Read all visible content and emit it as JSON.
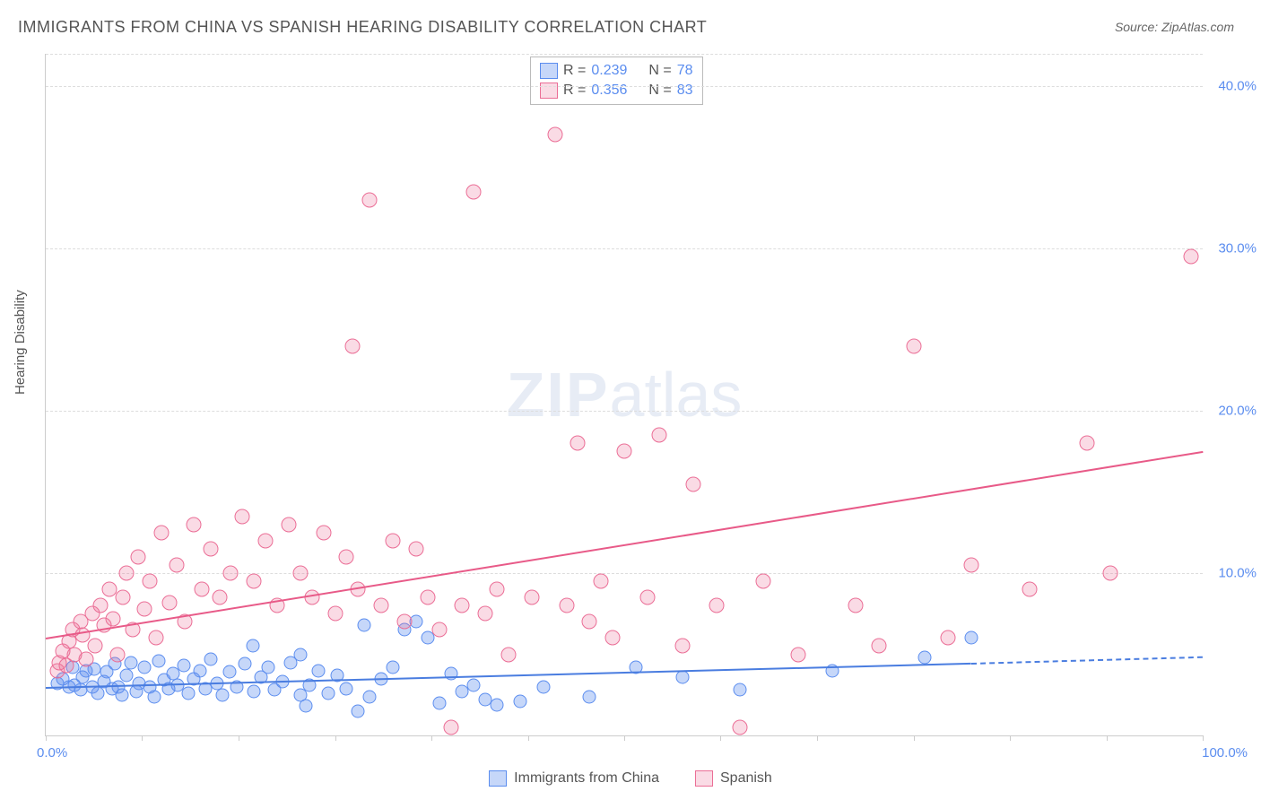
{
  "title": "IMMIGRANTS FROM CHINA VS SPANISH HEARING DISABILITY CORRELATION CHART",
  "source_label": "Source: ",
  "source_value": "ZipAtlas.com",
  "ylabel": "Hearing Disability",
  "watermark": {
    "bold": "ZIP",
    "light": "atlas"
  },
  "chart": {
    "type": "scatter",
    "background_color": "#ffffff",
    "grid_color": "#dddddd",
    "axis_color": "#cccccc",
    "xlim": [
      0,
      100
    ],
    "ylim": [
      0,
      42
    ],
    "x_min_label": "0.0%",
    "x_max_label": "100.0%",
    "xtick_positions": [
      0,
      8.3,
      16.7,
      25,
      33.3,
      41.7,
      50,
      58.3,
      66.7,
      75,
      83.3,
      91.7,
      100
    ],
    "y_gridlines": [
      10,
      20,
      30,
      40
    ],
    "y_gridline_labels": [
      "10.0%",
      "20.0%",
      "30.0%",
      "40.0%"
    ],
    "marker_radius_blue": 6.5,
    "marker_radius_pink": 7.5,
    "series": [
      {
        "name": "Immigrants from China",
        "color_fill": "rgba(91,141,239,0.35)",
        "color_stroke": "#5b8def",
        "R_label": "R = ",
        "R": "0.239",
        "N_label": "N = ",
        "N": "78",
        "trend": {
          "x0": 0,
          "y0": 3.0,
          "x1": 80,
          "y1": 4.5,
          "dash_x1": 100,
          "dash_y1": 4.9,
          "color": "#4a7de0",
          "width": 2
        },
        "points": [
          [
            1,
            3.2
          ],
          [
            1.5,
            3.5
          ],
          [
            2,
            3.0
          ],
          [
            2.3,
            4.2
          ],
          [
            2.5,
            3.1
          ],
          [
            3,
            2.8
          ],
          [
            3.2,
            3.6
          ],
          [
            3.5,
            4.0
          ],
          [
            4,
            3.0
          ],
          [
            4.2,
            4.1
          ],
          [
            4.5,
            2.6
          ],
          [
            5,
            3.3
          ],
          [
            5.3,
            3.9
          ],
          [
            5.7,
            2.9
          ],
          [
            6,
            4.4
          ],
          [
            6.3,
            3.0
          ],
          [
            6.6,
            2.5
          ],
          [
            7,
            3.7
          ],
          [
            7.4,
            4.5
          ],
          [
            7.8,
            2.7
          ],
          [
            8.1,
            3.2
          ],
          [
            8.5,
            4.2
          ],
          [
            9,
            3.0
          ],
          [
            9.4,
            2.4
          ],
          [
            9.8,
            4.6
          ],
          [
            10.2,
            3.4
          ],
          [
            10.6,
            2.9
          ],
          [
            11,
            3.8
          ],
          [
            11.4,
            3.1
          ],
          [
            11.9,
            4.3
          ],
          [
            12.3,
            2.6
          ],
          [
            12.8,
            3.5
          ],
          [
            13.3,
            4.0
          ],
          [
            13.8,
            2.9
          ],
          [
            14.3,
            4.7
          ],
          [
            14.8,
            3.2
          ],
          [
            15.3,
            2.5
          ],
          [
            15.9,
            3.9
          ],
          [
            16.5,
            3.0
          ],
          [
            17.2,
            4.4
          ],
          [
            17.9,
            5.5
          ],
          [
            18,
            2.7
          ],
          [
            18.6,
            3.6
          ],
          [
            19.2,
            4.2
          ],
          [
            19.8,
            2.8
          ],
          [
            20.5,
            3.3
          ],
          [
            21.2,
            4.5
          ],
          [
            22,
            5.0
          ],
          [
            22,
            2.5
          ],
          [
            22.5,
            1.8
          ],
          [
            22.8,
            3.1
          ],
          [
            23.6,
            4.0
          ],
          [
            24.4,
            2.6
          ],
          [
            25.2,
            3.7
          ],
          [
            26,
            2.9
          ],
          [
            27,
            1.5
          ],
          [
            27.5,
            6.8
          ],
          [
            28,
            2.4
          ],
          [
            29,
            3.5
          ],
          [
            30,
            4.2
          ],
          [
            31,
            6.5
          ],
          [
            32,
            7.0
          ],
          [
            33,
            6.0
          ],
          [
            34,
            2.0
          ],
          [
            35,
            3.8
          ],
          [
            36,
            2.7
          ],
          [
            37,
            3.1
          ],
          [
            38,
            2.2
          ],
          [
            39,
            1.9
          ],
          [
            41,
            2.1
          ],
          [
            43,
            3.0
          ],
          [
            47,
            2.4
          ],
          [
            51,
            4.2
          ],
          [
            55,
            3.6
          ],
          [
            60,
            2.8
          ],
          [
            68,
            4.0
          ],
          [
            76,
            4.8
          ],
          [
            80,
            6.0
          ]
        ]
      },
      {
        "name": "Spanish",
        "color_fill": "rgba(235,110,150,0.25)",
        "color_stroke": "#eb6e96",
        "R_label": "R = ",
        "R": "0.356",
        "N_label": "N = ",
        "N": "83",
        "trend": {
          "x0": 0,
          "y0": 6.0,
          "x1": 100,
          "y1": 17.5,
          "color": "#e85a88",
          "width": 2.5
        },
        "points": [
          [
            1,
            4.0
          ],
          [
            1.2,
            4.5
          ],
          [
            1.5,
            5.2
          ],
          [
            1.8,
            4.3
          ],
          [
            2,
            5.8
          ],
          [
            2.3,
            6.5
          ],
          [
            2.5,
            5.0
          ],
          [
            3,
            7.0
          ],
          [
            3.2,
            6.2
          ],
          [
            3.5,
            4.7
          ],
          [
            4,
            7.5
          ],
          [
            4.3,
            5.5
          ],
          [
            4.7,
            8.0
          ],
          [
            5,
            6.8
          ],
          [
            5.5,
            9.0
          ],
          [
            5.8,
            7.2
          ],
          [
            6.2,
            5.0
          ],
          [
            6.7,
            8.5
          ],
          [
            7,
            10.0
          ],
          [
            7.5,
            6.5
          ],
          [
            8,
            11.0
          ],
          [
            8.5,
            7.8
          ],
          [
            9,
            9.5
          ],
          [
            9.5,
            6.0
          ],
          [
            10,
            12.5
          ],
          [
            10.7,
            8.2
          ],
          [
            11.3,
            10.5
          ],
          [
            12,
            7.0
          ],
          [
            12.8,
            13.0
          ],
          [
            13.5,
            9.0
          ],
          [
            14.3,
            11.5
          ],
          [
            15,
            8.5
          ],
          [
            16,
            10.0
          ],
          [
            17,
            13.5
          ],
          [
            18,
            9.5
          ],
          [
            19,
            12.0
          ],
          [
            20,
            8.0
          ],
          [
            21,
            13.0
          ],
          [
            22,
            10.0
          ],
          [
            23,
            8.5
          ],
          [
            24,
            12.5
          ],
          [
            25,
            7.5
          ],
          [
            26,
            11.0
          ],
          [
            26.5,
            24.0
          ],
          [
            27,
            9.0
          ],
          [
            28,
            33.0
          ],
          [
            29,
            8.0
          ],
          [
            30,
            12.0
          ],
          [
            31,
            7.0
          ],
          [
            32,
            11.5
          ],
          [
            33,
            8.5
          ],
          [
            34,
            6.5
          ],
          [
            35,
            0.5
          ],
          [
            36,
            8.0
          ],
          [
            37,
            33.5
          ],
          [
            38,
            7.5
          ],
          [
            39,
            9.0
          ],
          [
            40,
            5.0
          ],
          [
            42,
            8.5
          ],
          [
            44,
            37.0
          ],
          [
            45,
            8.0
          ],
          [
            46,
            18.0
          ],
          [
            47,
            7.0
          ],
          [
            48,
            9.5
          ],
          [
            49,
            6.0
          ],
          [
            50,
            17.5
          ],
          [
            52,
            8.5
          ],
          [
            53,
            18.5
          ],
          [
            55,
            5.5
          ],
          [
            56,
            15.5
          ],
          [
            58,
            8.0
          ],
          [
            60,
            0.5
          ],
          [
            62,
            9.5
          ],
          [
            65,
            5.0
          ],
          [
            70,
            8.0
          ],
          [
            72,
            5.5
          ],
          [
            75,
            24.0
          ],
          [
            78,
            6.0
          ],
          [
            80,
            10.5
          ],
          [
            85,
            9.0
          ],
          [
            90,
            18.0
          ],
          [
            92,
            10.0
          ],
          [
            99,
            29.5
          ]
        ]
      }
    ]
  },
  "legend_bottom": [
    {
      "label": "Immigrants from China",
      "swatch": "blue"
    },
    {
      "label": "Spanish",
      "swatch": "pink"
    }
  ]
}
